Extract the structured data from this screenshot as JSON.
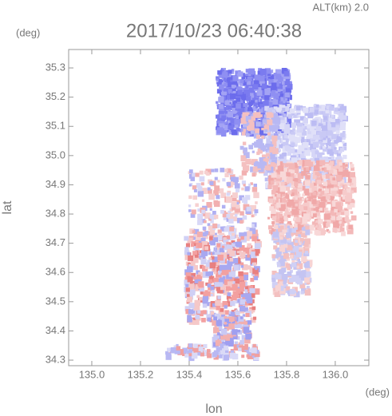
{
  "chart_data": {
    "type": "heatmap",
    "title": "2017/10/23 06:40:38",
    "annotation": "ALT(km) 2.0",
    "xlabel": "lon",
    "ylabel": "lat",
    "x_unit": "(deg)",
    "y_unit": "(deg)",
    "xlim": [
      134.905,
      136.138
    ],
    "ylim": [
      34.281,
      35.363
    ],
    "xticks": [
      {
        "value": 135,
        "label": "135.0"
      },
      135.2,
      135.4,
      135.6,
      135.8,
      {
        "value": 136,
        "label": "136.0"
      }
    ],
    "yticks": [
      34.3,
      34.4,
      34.5,
      34.6,
      34.7,
      34.8,
      34.9,
      {
        "value": 35,
        "label": "35.0"
      },
      35.1,
      35.2,
      35.3
    ]
  }
}
